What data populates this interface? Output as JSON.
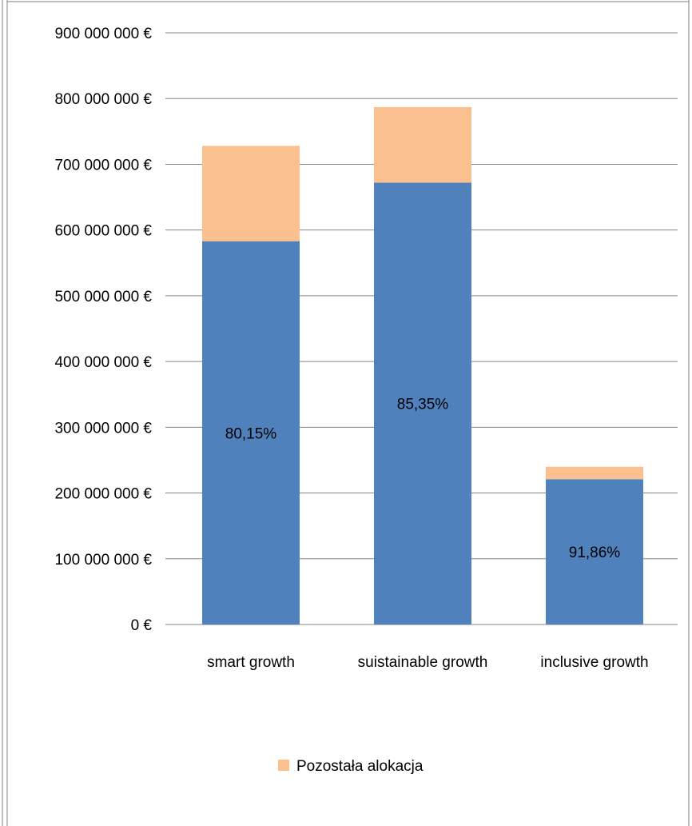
{
  "chart_data": {
    "type": "bar",
    "stacked": true,
    "title": "",
    "xlabel": "",
    "ylabel": "",
    "categories": [
      "smart growth",
      "suistainable growth",
      "inclusive growth"
    ],
    "series": [
      {
        "values": [
          583000000,
          672000000,
          221000000
        ],
        "labels": [
          "80,15%",
          "85,35%",
          "91,86%"
        ],
        "color": "#4F81BD"
      },
      {
        "name": "Pozostała alokacja",
        "values": [
          145000000,
          115000000,
          19000000
        ],
        "color": "#FAC090"
      }
    ],
    "ylim": [
      0,
      900000000
    ],
    "yticks": [
      {
        "value": 0,
        "label": "0 €"
      },
      {
        "value": 100000000,
        "label": "100 000 000 €"
      },
      {
        "value": 200000000,
        "label": "200 000 000 €"
      },
      {
        "value": 300000000,
        "label": "300 000 000 €"
      },
      {
        "value": 400000000,
        "label": "400 000 000 €"
      },
      {
        "value": 500000000,
        "label": "500 000 000 €"
      },
      {
        "value": 600000000,
        "label": "600 000 000 €"
      },
      {
        "value": 700000000,
        "label": "700 000 000 €"
      },
      {
        "value": 800000000,
        "label": "800 000 000 €"
      },
      {
        "value": 900000000,
        "label": "900 000 000 €"
      }
    ],
    "grid": true,
    "gridline_color": "#868686",
    "legend_position": "bottom",
    "legend": [
      "Pozostała alokacja"
    ]
  }
}
